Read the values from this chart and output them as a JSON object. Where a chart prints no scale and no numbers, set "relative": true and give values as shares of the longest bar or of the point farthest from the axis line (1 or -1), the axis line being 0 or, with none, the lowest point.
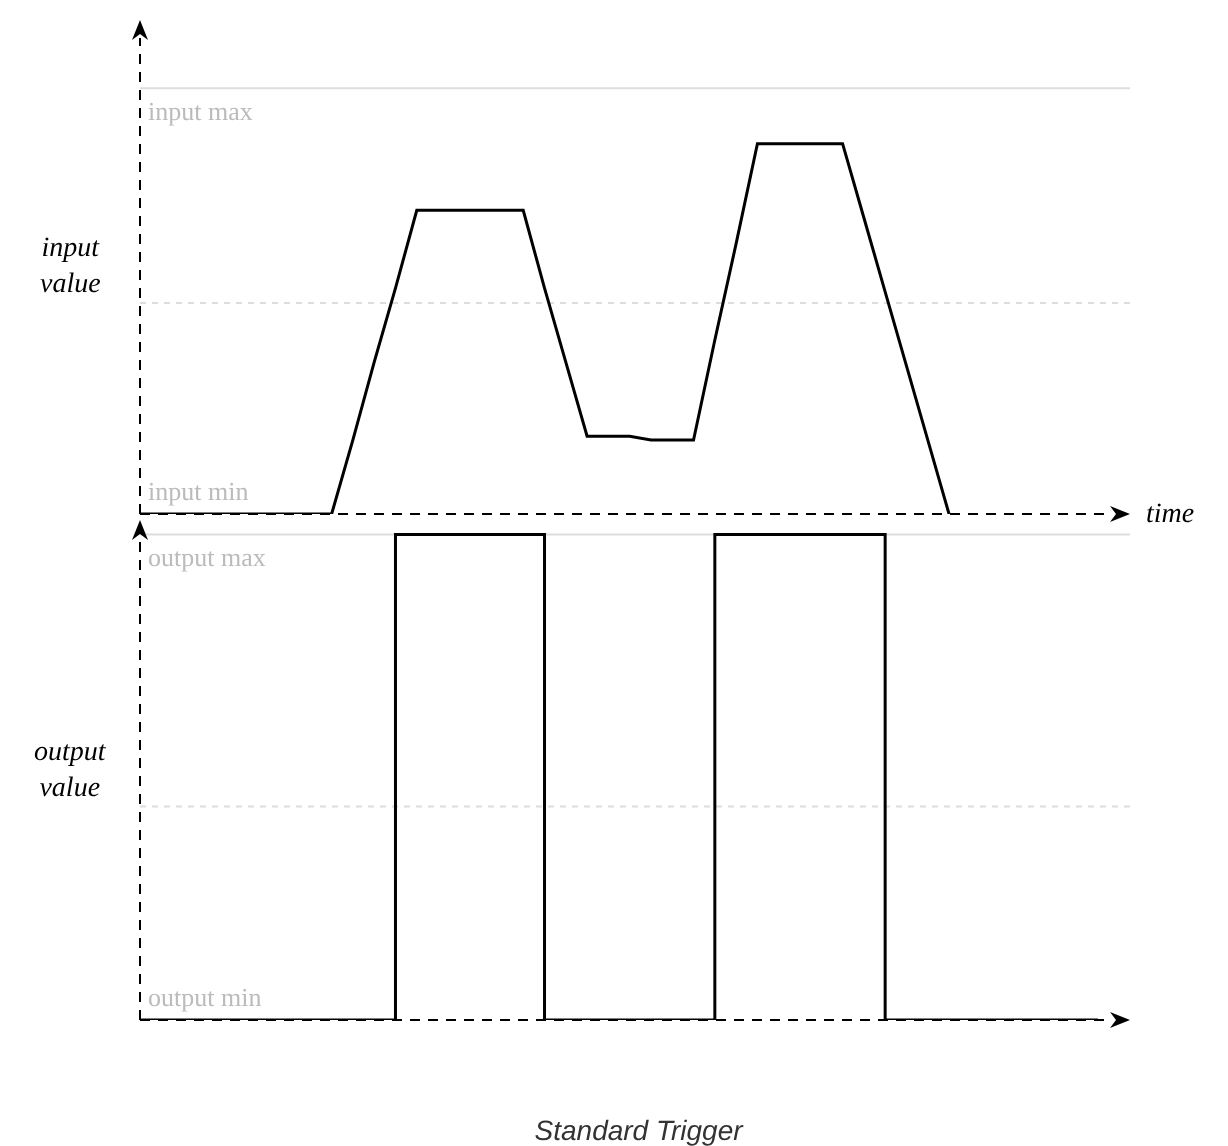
{
  "chart_data": [
    {
      "type": "line",
      "relative": true,
      "ylabel": "input value",
      "xlabel": "time",
      "annotations": [
        "input min"
      ],
      "categories": [
        null,
        null,
        null,
        null,
        null,
        null,
        null,
        null,
        null,
        null,
        null,
        null,
        null,
        null,
        null,
        null,
        null,
        null,
        null,
        null,
        null,
        null,
        null,
        null,
        null,
        null,
        null,
        null,
        null,
        null,
        null,
        null,
        null,
        null,
        null,
        null,
        null,
        null,
        null,
        null,
        null,
        null,
        null,
        null,
        null,
        null
      ],
      "values": [
        0,
        0,
        0,
        0,
        0,
        0,
        0,
        0,
        0,
        0,
        0.2,
        0.41,
        0.61,
        0.82,
        0.82,
        0.82,
        0.82,
        0.82,
        0.82,
        0.61,
        0.41,
        0.21,
        0.21,
        0.21,
        0.2,
        0.2,
        0.2,
        0.47,
        0.73,
        1,
        1,
        1,
        1,
        1,
        0.8,
        0.6,
        0.4,
        0.2,
        0,
        null,
        null,
        null,
        null,
        null,
        null,
        null
      ],
      "color": "#000000",
      "ref_lines": [
        {
          "axis": "y",
          "value": 1.15,
          "label": "input max",
          "color": "#dddddd",
          "line_style": "solid"
        },
        {
          "axis": "y",
          "value": 0.57,
          "color": "#dddddd",
          "line_style": "dotted"
        }
      ]
    },
    {
      "type": "step",
      "relative": true,
      "title": "Standard Trigger",
      "ylabel": "output value",
      "annotations": [
        "output min"
      ],
      "categories": [
        null,
        null,
        null,
        null,
        null,
        null,
        null,
        null,
        null,
        null,
        null,
        null,
        null,
        null,
        null,
        null,
        null,
        null,
        null,
        null,
        null,
        null,
        null,
        null,
        null,
        null,
        null,
        null,
        null,
        null,
        null,
        null,
        null,
        null,
        null,
        null,
        null,
        null,
        null,
        null,
        null,
        null,
        null,
        null,
        null,
        null
      ],
      "values": [
        0,
        0,
        0,
        0,
        0,
        0,
        0,
        0,
        0,
        0,
        0,
        0,
        1,
        1,
        1,
        1,
        1,
        1,
        1,
        0,
        0,
        0,
        0,
        0,
        0,
        0,
        0,
        1,
        1,
        1,
        1,
        1,
        1,
        1,
        1,
        0,
        0,
        0,
        0,
        0,
        0,
        0,
        0,
        0,
        0,
        0
      ],
      "color": "#000000",
      "ref_lines": [
        {
          "axis": "y",
          "value": 1,
          "label": "output max",
          "color": "#dddddd",
          "line_style": "solid"
        },
        {
          "axis": "y",
          "value": 0.44,
          "color": "#dddddd",
          "line_style": "dotted"
        }
      ]
    }
  ]
}
